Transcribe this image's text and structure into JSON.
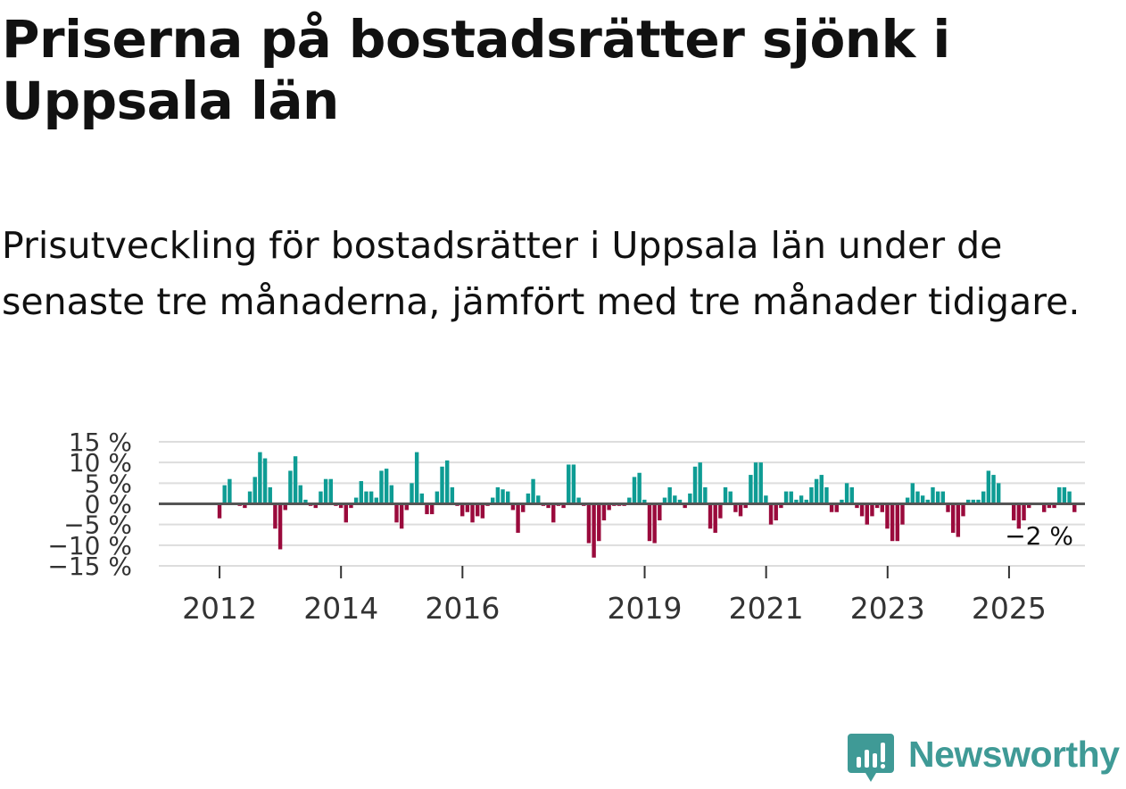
{
  "title": "Priserna på bostadsrätter sjönk i Uppsala län",
  "subtitle": "Prisutveckling för bostadsrätter i Uppsala län under de senaste tre månaderna, jämfört med tre månader tidigare.",
  "logo_text": "Newsworthy",
  "colors": {
    "positive": "#0e9c94",
    "negative": "#9a0a3c",
    "grid": "#dddddd",
    "zero": "#555555"
  },
  "chart_data": {
    "type": "bar",
    "title": "",
    "xlabel": "",
    "ylabel": "",
    "ylim": [
      -15,
      15
    ],
    "y_ticks": [
      15,
      10,
      5,
      0,
      -5,
      -10,
      -15
    ],
    "y_tick_labels": [
      "15 %",
      "10 %",
      "5 %",
      "0 %",
      "−5 %",
      "−10 %",
      "−15 %"
    ],
    "x_tick_labels": [
      "2012",
      "2014",
      "2016",
      "2019",
      "2021",
      "2023",
      "2025"
    ],
    "x_tick_positions": [
      2012.0,
      2014.0,
      2016.0,
      2019.0,
      2021.0,
      2023.0,
      2025.0
    ],
    "start": 2011.0,
    "end": 2026.25,
    "step": 0.0833,
    "annotation": "−2 %",
    "values": [
      0,
      0,
      0,
      0,
      0,
      0,
      0,
      0,
      0,
      0,
      0,
      0,
      -3.5,
      4.5,
      6,
      0,
      -0.5,
      -1,
      3,
      6.5,
      12.5,
      11,
      4,
      -6,
      -11,
      -1.5,
      8,
      11.5,
      4.5,
      1,
      -0.5,
      -1,
      3,
      6,
      6,
      -0.5,
      -1,
      -4.5,
      -1,
      1.5,
      5.5,
      3,
      3,
      1.5,
      8,
      8.5,
      4.5,
      -4.5,
      -6,
      -1.5,
      5,
      12.5,
      2.5,
      -2.5,
      -2.5,
      3,
      9,
      10.5,
      4,
      -0.5,
      -3,
      -2,
      -4.5,
      -3,
      -3.5,
      -0.5,
      1.5,
      4,
      3.5,
      3,
      -1.5,
      -7,
      -2,
      2.5,
      6,
      2,
      -0.5,
      -1,
      -4.5,
      -0.5,
      -1,
      9.5,
      9.5,
      1.5,
      -0.5,
      -9.5,
      -13,
      -9,
      -4,
      -1.5,
      -0.5,
      -0.5,
      -0.5,
      1.5,
      6.5,
      7.5,
      1,
      -9,
      -9.5,
      -4,
      1.5,
      4,
      2,
      1,
      -1,
      2.5,
      9,
      10,
      4,
      -6,
      -7,
      -3.5,
      4,
      3,
      -2,
      -3,
      -1,
      7,
      10,
      10,
      2,
      -5,
      -4,
      -1,
      3,
      3,
      1,
      2,
      1,
      4,
      6,
      7,
      4,
      -2,
      -2,
      1,
      5,
      4,
      -1,
      -3,
      -5,
      -3,
      -1,
      -2,
      -6,
      -9,
      -9,
      -5,
      1.5,
      5,
      3,
      2,
      1,
      4,
      3,
      3,
      -2,
      -7,
      -8,
      -3,
      1,
      1,
      1,
      3,
      8,
      7,
      5,
      0,
      0,
      -4,
      -6,
      -4,
      -1,
      0,
      0,
      -2,
      -1,
      -1,
      4,
      4,
      3,
      -2,
      0
    ]
  }
}
